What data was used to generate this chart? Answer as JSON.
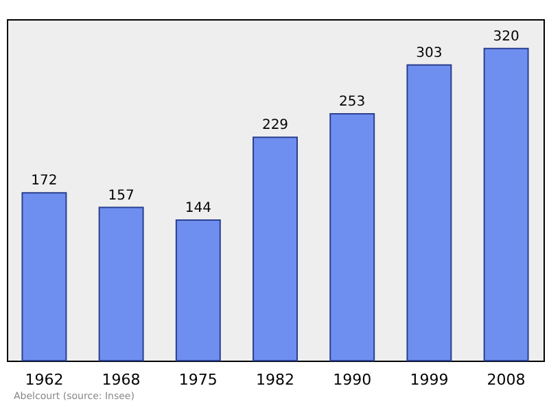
{
  "chart_data": {
    "type": "bar",
    "categories": [
      "1962",
      "1968",
      "1975",
      "1982",
      "1990",
      "1999",
      "2008"
    ],
    "values": [
      172,
      157,
      144,
      229,
      253,
      303,
      320
    ],
    "color": "#6f8ff0",
    "data_labels": true,
    "grid": false,
    "annotations": [
      "Abelcourt (source: Insee)"
    ]
  }
}
